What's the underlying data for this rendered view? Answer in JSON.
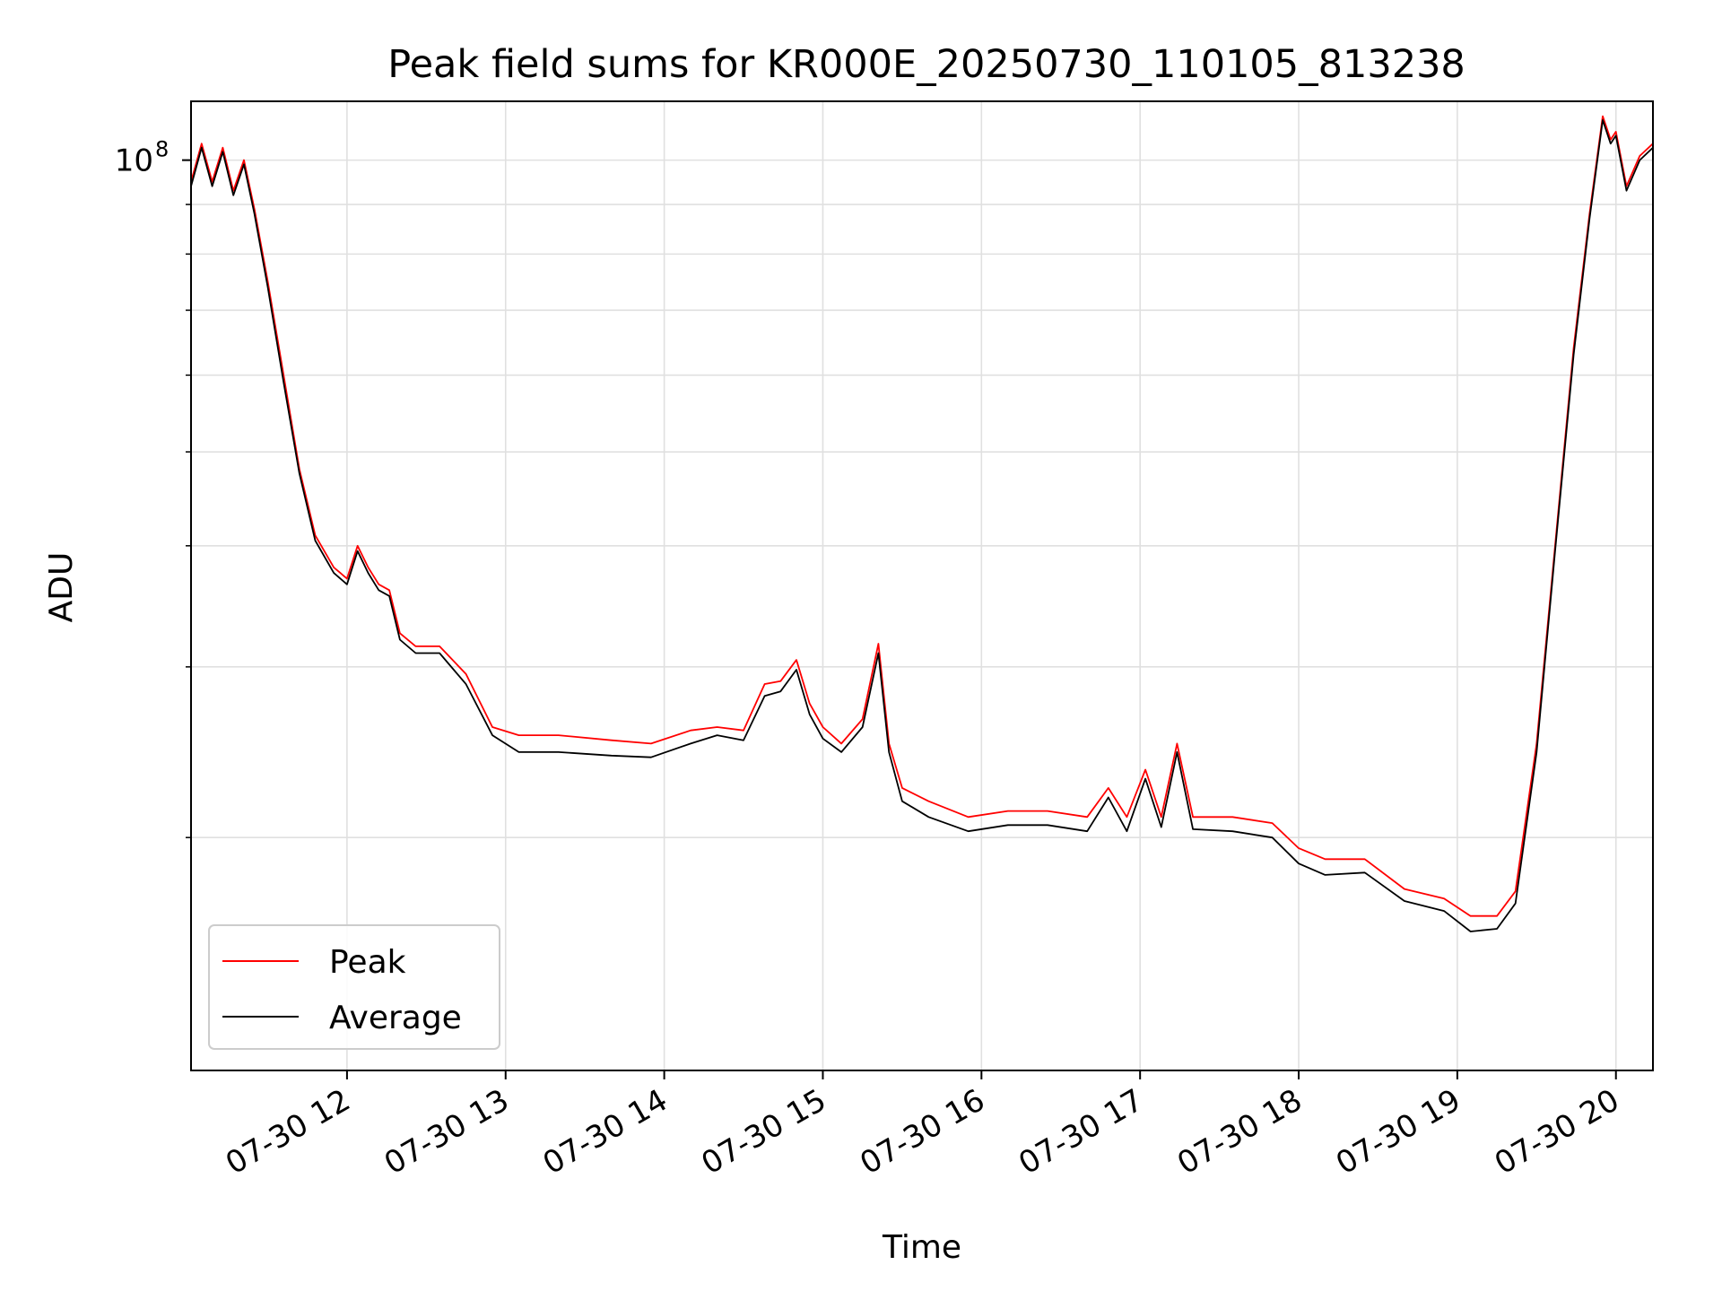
{
  "chart_data": {
    "type": "line",
    "title": "Peak field sums for KR000E_20250730_110105_813238",
    "xlabel": "Time",
    "ylabel": "ADU",
    "yscale": "log",
    "grid": true,
    "legend_position": "lower-left",
    "xlim": [
      "2025-07-30 11:01",
      "2025-07-30 20:14"
    ],
    "ylim": [
      11500000,
      115000000
    ],
    "x_ticks": [
      "07-30 12",
      "07-30 13",
      "07-30 14",
      "07-30 15",
      "07-30 16",
      "07-30 17",
      "07-30 18",
      "07-30 19",
      "07-30 20"
    ],
    "y_ticks": [
      {
        "value": 100000000,
        "label": "10",
        "exponent": "8"
      }
    ],
    "series": [
      {
        "name": "Peak",
        "color": "#ff0000",
        "points": [
          [
            "2025-07-30 11:01",
            95000000
          ],
          [
            "2025-07-30 11:05",
            104000000
          ],
          [
            "2025-07-30 11:09",
            95000000
          ],
          [
            "2025-07-30 11:13",
            103000000
          ],
          [
            "2025-07-30 11:17",
            93000000
          ],
          [
            "2025-07-30 11:21",
            100000000
          ],
          [
            "2025-07-30 11:25",
            89000000
          ],
          [
            "2025-07-30 11:30",
            75000000
          ],
          [
            "2025-07-30 11:36",
            60000000
          ],
          [
            "2025-07-30 11:42",
            48000000
          ],
          [
            "2025-07-30 11:48",
            41000000
          ],
          [
            "2025-07-30 11:55",
            38000000
          ],
          [
            "2025-07-30 12:00",
            37000000
          ],
          [
            "2025-07-30 12:04",
            40000000
          ],
          [
            "2025-07-30 12:08",
            38000000
          ],
          [
            "2025-07-30 12:12",
            36500000
          ],
          [
            "2025-07-30 12:16",
            36000000
          ],
          [
            "2025-07-30 12:20",
            32500000
          ],
          [
            "2025-07-30 12:26",
            31500000
          ],
          [
            "2025-07-30 12:35",
            31500000
          ],
          [
            "2025-07-30 12:45",
            29500000
          ],
          [
            "2025-07-30 12:55",
            26000000
          ],
          [
            "2025-07-30 13:05",
            25500000
          ],
          [
            "2025-07-30 13:20",
            25500000
          ],
          [
            "2025-07-30 13:40",
            25200000
          ],
          [
            "2025-07-30 13:55",
            25000000
          ],
          [
            "2025-07-30 14:10",
            25800000
          ],
          [
            "2025-07-30 14:20",
            26000000
          ],
          [
            "2025-07-30 14:30",
            25800000
          ],
          [
            "2025-07-30 14:38",
            28800000
          ],
          [
            "2025-07-30 14:44",
            29000000
          ],
          [
            "2025-07-30 14:50",
            30500000
          ],
          [
            "2025-07-30 14:55",
            27500000
          ],
          [
            "2025-07-30 15:00",
            26000000
          ],
          [
            "2025-07-30 15:07",
            25000000
          ],
          [
            "2025-07-30 15:15",
            26500000
          ],
          [
            "2025-07-30 15:21",
            31700000
          ],
          [
            "2025-07-30 15:25",
            25000000
          ],
          [
            "2025-07-30 15:30",
            22500000
          ],
          [
            "2025-07-30 15:40",
            21800000
          ],
          [
            "2025-07-30 15:55",
            21000000
          ],
          [
            "2025-07-30 16:10",
            21300000
          ],
          [
            "2025-07-30 16:25",
            21300000
          ],
          [
            "2025-07-30 16:40",
            21000000
          ],
          [
            "2025-07-30 16:48",
            22500000
          ],
          [
            "2025-07-30 16:55",
            21000000
          ],
          [
            "2025-07-30 17:02",
            23500000
          ],
          [
            "2025-07-30 17:08",
            21000000
          ],
          [
            "2025-07-30 17:14",
            25000000
          ],
          [
            "2025-07-30 17:20",
            21000000
          ],
          [
            "2025-07-30 17:35",
            21000000
          ],
          [
            "2025-07-30 17:50",
            20700000
          ],
          [
            "2025-07-30 18:00",
            19500000
          ],
          [
            "2025-07-30 18:10",
            19000000
          ],
          [
            "2025-07-30 18:25",
            19000000
          ],
          [
            "2025-07-30 18:40",
            17700000
          ],
          [
            "2025-07-30 18:55",
            17300000
          ],
          [
            "2025-07-30 19:05",
            16600000
          ],
          [
            "2025-07-30 19:15",
            16600000
          ],
          [
            "2025-07-30 19:22",
            17600000
          ],
          [
            "2025-07-30 19:30",
            25000000
          ],
          [
            "2025-07-30 19:37",
            40000000
          ],
          [
            "2025-07-30 19:44",
            64000000
          ],
          [
            "2025-07-30 19:50",
            88000000
          ],
          [
            "2025-07-30 19:55",
            111000000
          ],
          [
            "2025-07-30 19:58",
            105000000
          ],
          [
            "2025-07-30 20:00",
            107000000
          ],
          [
            "2025-07-30 20:04",
            94000000
          ],
          [
            "2025-07-30 20:09",
            101000000
          ],
          [
            "2025-07-30 20:14",
            104000000
          ]
        ]
      },
      {
        "name": "Average",
        "color": "#000000",
        "points": [
          [
            "2025-07-30 11:01",
            94000000
          ],
          [
            "2025-07-30 11:05",
            103000000
          ],
          [
            "2025-07-30 11:09",
            94000000
          ],
          [
            "2025-07-30 11:13",
            102000000
          ],
          [
            "2025-07-30 11:17",
            92000000
          ],
          [
            "2025-07-30 11:21",
            99000000
          ],
          [
            "2025-07-30 11:25",
            88000000
          ],
          [
            "2025-07-30 11:30",
            74000000
          ],
          [
            "2025-07-30 11:36",
            59000000
          ],
          [
            "2025-07-30 11:42",
            47500000
          ],
          [
            "2025-07-30 11:48",
            40500000
          ],
          [
            "2025-07-30 11:55",
            37500000
          ],
          [
            "2025-07-30 12:00",
            36500000
          ],
          [
            "2025-07-30 12:04",
            39500000
          ],
          [
            "2025-07-30 12:08",
            37500000
          ],
          [
            "2025-07-30 12:12",
            36000000
          ],
          [
            "2025-07-30 12:16",
            35500000
          ],
          [
            "2025-07-30 12:20",
            32000000
          ],
          [
            "2025-07-30 12:26",
            31000000
          ],
          [
            "2025-07-30 12:35",
            31000000
          ],
          [
            "2025-07-30 12:45",
            28800000
          ],
          [
            "2025-07-30 12:55",
            25500000
          ],
          [
            "2025-07-30 13:05",
            24500000
          ],
          [
            "2025-07-30 13:20",
            24500000
          ],
          [
            "2025-07-30 13:40",
            24300000
          ],
          [
            "2025-07-30 13:55",
            24200000
          ],
          [
            "2025-07-30 14:10",
            25000000
          ],
          [
            "2025-07-30 14:20",
            25500000
          ],
          [
            "2025-07-30 14:30",
            25200000
          ],
          [
            "2025-07-30 14:38",
            28000000
          ],
          [
            "2025-07-30 14:44",
            28300000
          ],
          [
            "2025-07-30 14:50",
            29800000
          ],
          [
            "2025-07-30 14:55",
            26800000
          ],
          [
            "2025-07-30 15:00",
            25300000
          ],
          [
            "2025-07-30 15:07",
            24500000
          ],
          [
            "2025-07-30 15:15",
            26000000
          ],
          [
            "2025-07-30 15:21",
            31000000
          ],
          [
            "2025-07-30 15:25",
            24500000
          ],
          [
            "2025-07-30 15:30",
            21800000
          ],
          [
            "2025-07-30 15:40",
            21000000
          ],
          [
            "2025-07-30 15:55",
            20300000
          ],
          [
            "2025-07-30 16:10",
            20600000
          ],
          [
            "2025-07-30 16:25",
            20600000
          ],
          [
            "2025-07-30 16:40",
            20300000
          ],
          [
            "2025-07-30 16:48",
            22000000
          ],
          [
            "2025-07-30 16:55",
            20300000
          ],
          [
            "2025-07-30 17:02",
            23000000
          ],
          [
            "2025-07-30 17:08",
            20500000
          ],
          [
            "2025-07-30 17:14",
            24500000
          ],
          [
            "2025-07-30 17:20",
            20400000
          ],
          [
            "2025-07-30 17:35",
            20300000
          ],
          [
            "2025-07-30 17:50",
            20000000
          ],
          [
            "2025-07-30 18:00",
            18800000
          ],
          [
            "2025-07-30 18:10",
            18300000
          ],
          [
            "2025-07-30 18:25",
            18400000
          ],
          [
            "2025-07-30 18:40",
            17200000
          ],
          [
            "2025-07-30 18:55",
            16800000
          ],
          [
            "2025-07-30 19:05",
            16000000
          ],
          [
            "2025-07-30 19:15",
            16100000
          ],
          [
            "2025-07-30 19:22",
            17100000
          ],
          [
            "2025-07-30 19:30",
            24500000
          ],
          [
            "2025-07-30 19:37",
            39500000
          ],
          [
            "2025-07-30 19:44",
            63000000
          ],
          [
            "2025-07-30 19:50",
            87000000
          ],
          [
            "2025-07-30 19:55",
            110000000
          ],
          [
            "2025-07-30 19:58",
            104000000
          ],
          [
            "2025-07-30 20:00",
            106000000
          ],
          [
            "2025-07-30 20:04",
            93000000
          ],
          [
            "2025-07-30 20:09",
            100000000
          ],
          [
            "2025-07-30 20:14",
            103000000
          ]
        ]
      }
    ]
  }
}
